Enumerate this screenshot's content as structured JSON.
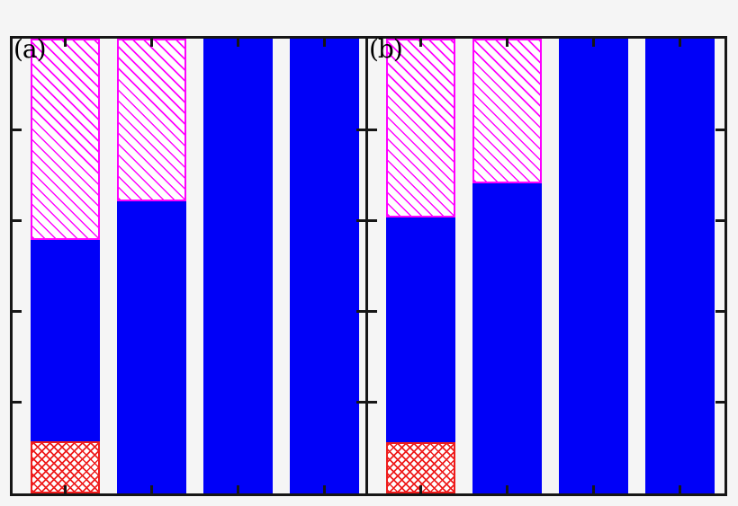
{
  "figure": {
    "background": "#f5f5f5",
    "axis_color": "#161616",
    "colors": {
      "blue": "#0000f8",
      "magenta": "#ff00ff",
      "red": "#ee1c1c",
      "hatch_background": "#ffffff"
    }
  },
  "chart_data": {
    "type": "bar",
    "subtype": "stacked-vertical-two-panel",
    "title": "",
    "xlabel": "",
    "ylabel": "",
    "legend": "none",
    "grid": false,
    "axis_tick_labels_visible": false,
    "y_axis": {
      "range_fraction": [
        0,
        1
      ],
      "tick_fractions_from_top": [
        0.2,
        0.4,
        0.6,
        0.8
      ]
    },
    "x_axis": {
      "ticks": "bar-centers",
      "tick_sides": [
        "top",
        "bottom"
      ]
    },
    "segment_kinds": {
      "blue-solid": "solid blue fill",
      "magenta-hatch": "magenta diagonal hatch (backslash) on white with magenta outline",
      "red-crosshatch": "red crosshatch mesh on white with red outline"
    },
    "panels": [
      {
        "label": "(a)",
        "bars": [
          {
            "segments": [
              {
                "kind": "red-crosshatch",
                "fraction": 0.114
              },
              {
                "kind": "blue-solid",
                "fraction": 0.444
              },
              {
                "kind": "magenta-hatch",
                "fraction": 0.442
              }
            ]
          },
          {
            "segments": [
              {
                "kind": "blue-solid",
                "fraction": 0.642
              },
              {
                "kind": "magenta-hatch",
                "fraction": 0.358
              }
            ]
          },
          {
            "segments": [
              {
                "kind": "blue-solid",
                "fraction": 1.0
              }
            ]
          },
          {
            "segments": [
              {
                "kind": "blue-solid",
                "fraction": 1.0
              }
            ]
          }
        ]
      },
      {
        "label": "(b)",
        "bars": [
          {
            "segments": [
              {
                "kind": "red-crosshatch",
                "fraction": 0.112
              },
              {
                "kind": "blue-solid",
                "fraction": 0.495
              },
              {
                "kind": "magenta-hatch",
                "fraction": 0.393
              }
            ]
          },
          {
            "segments": [
              {
                "kind": "blue-solid",
                "fraction": 0.682
              },
              {
                "kind": "magenta-hatch",
                "fraction": 0.318
              }
            ]
          },
          {
            "segments": [
              {
                "kind": "blue-solid",
                "fraction": 1.0
              }
            ]
          },
          {
            "segments": [
              {
                "kind": "blue-solid",
                "fraction": 1.0
              }
            ]
          }
        ]
      }
    ]
  }
}
